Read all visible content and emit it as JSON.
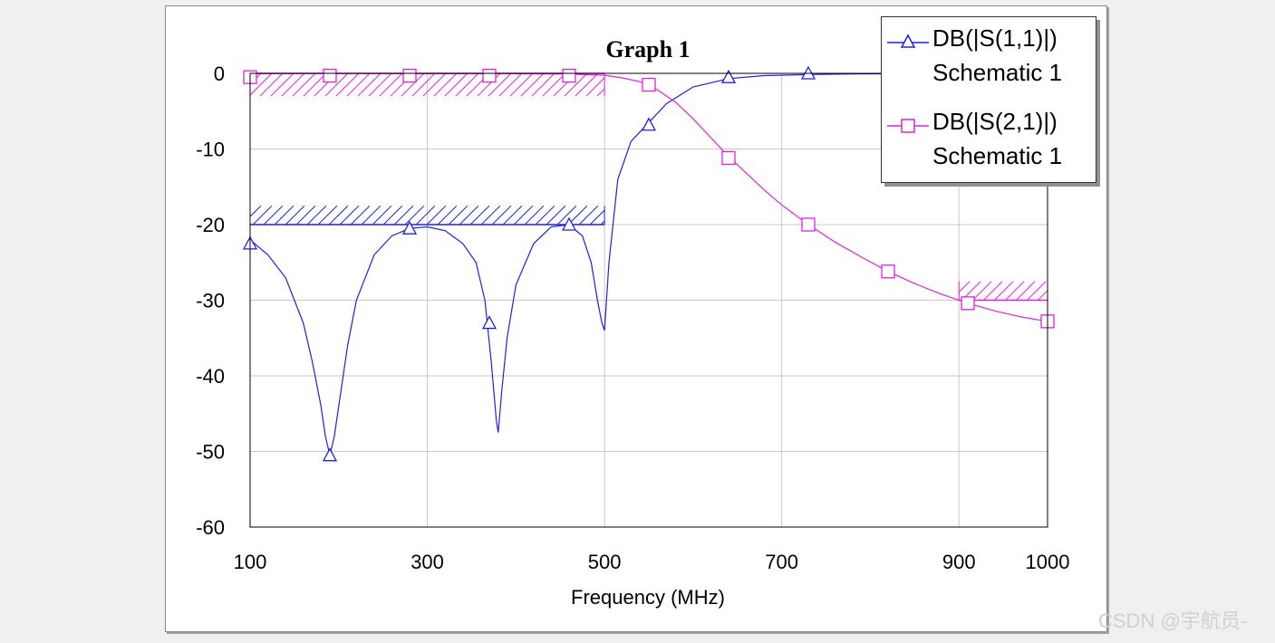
{
  "chart_data": {
    "type": "line",
    "title": "Graph 1",
    "xlabel": "Frequency (MHz)",
    "ylabel": "",
    "xlim": [
      100,
      1000
    ],
    "ylim": [
      -60,
      0
    ],
    "xticks": [
      100,
      300,
      500,
      700,
      900,
      1000
    ],
    "yticks": [
      0,
      -10,
      -20,
      -30,
      -40,
      -50,
      -60
    ],
    "grid": true,
    "legend_position": "top-right",
    "series": [
      {
        "name": "DB(|S(1,1)|)",
        "source": "Schematic 1",
        "color": "#2020e0",
        "marker": "triangle",
        "x": [
          100,
          120,
          140,
          160,
          170,
          180,
          185,
          190,
          195,
          200,
          210,
          220,
          240,
          260,
          280,
          300,
          320,
          340,
          355,
          365,
          372,
          378,
          380,
          384,
          390,
          400,
          420,
          440,
          460,
          475,
          485,
          492,
          497,
          500,
          505,
          515,
          530,
          550,
          570,
          600,
          640,
          680,
          730,
          780,
          850,
          950,
          1000
        ],
        "y": [
          -22,
          -24,
          -27,
          -33,
          -38,
          -44,
          -48,
          -50.5,
          -48,
          -44,
          -36,
          -30,
          -24,
          -21.5,
          -20.5,
          -20.3,
          -20.8,
          -22.5,
          -25,
          -30,
          -38,
          -46,
          -47.5,
          -42,
          -35,
          -28,
          -22.5,
          -20.3,
          -20,
          -21.5,
          -25,
          -30,
          -33,
          -34,
          -25,
          -14,
          -9,
          -6.5,
          -4,
          -1.8,
          -0.7,
          -0.3,
          -0.15,
          -0.08,
          -0.05,
          -0.03,
          -0.02
        ],
        "markers_x": [
          100,
          190,
          280,
          370,
          460,
          550,
          640,
          730
        ],
        "markers_y": [
          -22.5,
          -50.5,
          -20.5,
          -33,
          -20,
          -6.8,
          -0.5,
          0
        ]
      },
      {
        "name": "DB(|S(2,1)|)",
        "source": "Schematic 1",
        "color": "#e020e0",
        "marker": "square",
        "x": [
          100,
          200,
          300,
          400,
          460,
          500,
          520,
          540,
          560,
          580,
          600,
          620,
          640,
          660,
          680,
          700,
          730,
          760,
          790,
          820,
          850,
          880,
          910,
          940,
          970,
          1000
        ],
        "y": [
          -0.03,
          -0.02,
          -0.03,
          -0.05,
          -0.1,
          -0.25,
          -0.6,
          -1.1,
          -2.2,
          -3.8,
          -6,
          -8.5,
          -11,
          -13.2,
          -15.4,
          -17.4,
          -20,
          -22.3,
          -24.3,
          -26.2,
          -27.8,
          -29.2,
          -30.4,
          -31.4,
          -32.2,
          -32.8
        ],
        "markers_x": [
          100,
          190,
          280,
          370,
          460,
          550,
          640,
          730,
          820,
          910,
          1000
        ],
        "markers_y": [
          -0.5,
          -0.3,
          -0.3,
          -0.3,
          -0.3,
          -1.5,
          -11.2,
          -20,
          -26.2,
          -30.4,
          -32.8
        ]
      }
    ],
    "specs": [
      {
        "color": "#e020e0",
        "x": [
          100,
          500
        ],
        "y": 0,
        "hatch": "below",
        "hatch_to": -3
      },
      {
        "color": "#2020e0",
        "x": [
          100,
          500
        ],
        "y": -20,
        "hatch": "above",
        "hatch_to": -17.5
      },
      {
        "color": "#e020e0",
        "x": [
          900,
          1000
        ],
        "y": -30,
        "hatch": "above",
        "hatch_to": -27.5
      }
    ]
  },
  "watermark": "CSDN @宇航员-"
}
